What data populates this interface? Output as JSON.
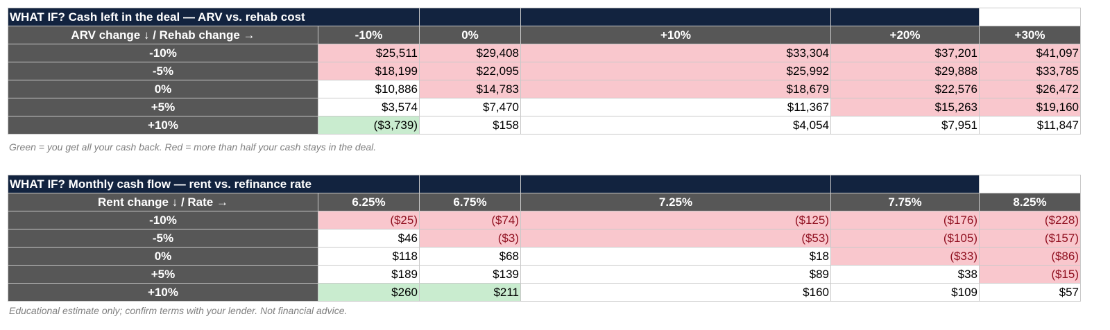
{
  "colors": {
    "title_bg": "#12233f",
    "header_bg": "#575757",
    "red_fill": "#f9c7cd",
    "green_fill": "#c9eccf",
    "negative_text": "#8f0f1f",
    "note_text": "#7f7f7f"
  },
  "table1": {
    "title": "WHAT IF? Cash left in the deal — ARV vs. rehab cost",
    "corner": "ARV change ↓ / Rehab change →",
    "columns": [
      "-10%",
      "0%",
      "+10%",
      "+20%",
      "+30%"
    ],
    "rows": [
      {
        "label": "-10%",
        "cells": [
          "$25,511",
          "$29,408",
          "$33,304",
          "$37,201",
          "$41,097"
        ],
        "fills": [
          "red",
          "red",
          "red",
          "red",
          "red"
        ]
      },
      {
        "label": "-5%",
        "cells": [
          "$18,199",
          "$22,095",
          "$25,992",
          "$29,888",
          "$33,785"
        ],
        "fills": [
          "red",
          "red",
          "red",
          "red",
          "red"
        ]
      },
      {
        "label": "0%",
        "cells": [
          "$10,886",
          "$14,783",
          "$18,679",
          "$22,576",
          "$26,472"
        ],
        "fills": [
          "none",
          "red",
          "red",
          "red",
          "red"
        ]
      },
      {
        "label": "+5%",
        "cells": [
          "$3,574",
          "$7,470",
          "$11,367",
          "$15,263",
          "$19,160"
        ],
        "fills": [
          "none",
          "none",
          "none",
          "red",
          "red"
        ]
      },
      {
        "label": "+10%",
        "cells": [
          "($3,739)",
          "$158",
          "$4,054",
          "$7,951",
          "$11,847"
        ],
        "fills": [
          "green",
          "none",
          "none",
          "none",
          "none"
        ]
      }
    ],
    "note": "Green = you get all your cash back. Red = more than half your cash stays in the deal."
  },
  "table2": {
    "title": "WHAT IF? Monthly cash flow — rent vs. refinance rate",
    "corner": "Rent change ↓ / Rate →",
    "columns": [
      "6.25%",
      "6.75%",
      "7.25%",
      "7.75%",
      "8.25%"
    ],
    "rows": [
      {
        "label": "-10%",
        "cells": [
          "($25)",
          "($74)",
          "($125)",
          "($176)",
          "($228)"
        ],
        "fills": [
          "red",
          "red",
          "red",
          "red",
          "red"
        ]
      },
      {
        "label": "-5%",
        "cells": [
          "$46",
          "($3)",
          "($53)",
          "($105)",
          "($157)"
        ],
        "fills": [
          "none",
          "red",
          "red",
          "red",
          "red"
        ]
      },
      {
        "label": "0%",
        "cells": [
          "$118",
          "$68",
          "$18",
          "($33)",
          "($86)"
        ],
        "fills": [
          "none",
          "none",
          "none",
          "red",
          "red"
        ]
      },
      {
        "label": "+5%",
        "cells": [
          "$189",
          "$139",
          "$89",
          "$38",
          "($15)"
        ],
        "fills": [
          "none",
          "none",
          "none",
          "none",
          "red"
        ]
      },
      {
        "label": "+10%",
        "cells": [
          "$260",
          "$211",
          "$160",
          "$109",
          "$57"
        ],
        "fills": [
          "green",
          "green",
          "none",
          "none",
          "none"
        ]
      }
    ],
    "note": "Educational estimate only; confirm terms with your lender. Not financial advice."
  }
}
